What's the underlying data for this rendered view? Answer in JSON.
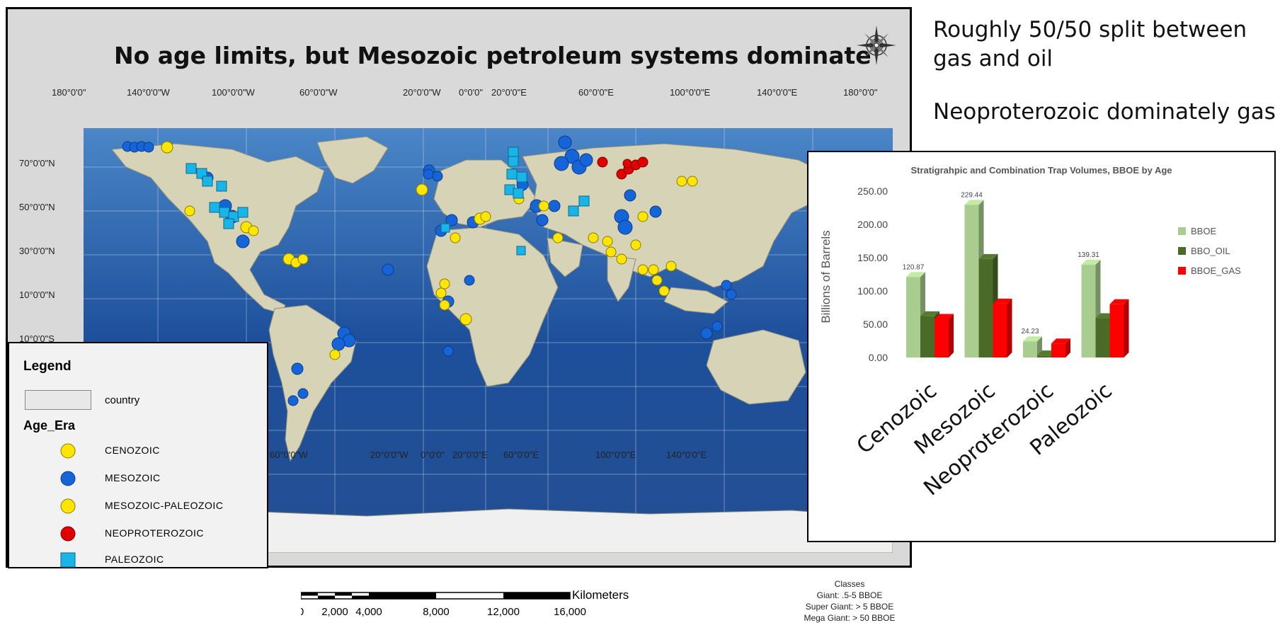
{
  "map": {
    "title": "No age limits, but Mesozoic petroleum systems dominate",
    "top_labels": [
      "180°0'0\"",
      "140°0'0\"W",
      "100°0'0\"W",
      "60°0'0\"W",
      "20°0'0\"W",
      "0°0'0\"",
      "20°0'0\"E",
      "60°0'0\"E",
      "100°0'0\"E",
      "140°0'0\"E",
      "180°0'0\""
    ],
    "bottom_labels": [
      "W",
      "60°0'0\"W",
      "20°0'0\"W",
      "0°0'0\"",
      "20°0'0\"E",
      "60°0'0\"E",
      "100°0'0\"E",
      "140°0'0\"E"
    ],
    "lat_labels": [
      "70°0'0\"N",
      "50°0'0\"N",
      "30°0'0\"N",
      "10°0'0\"N",
      "10°0'0\"S"
    ],
    "colors": {
      "ocean": "#1c4d96",
      "land": "#d7d3b6",
      "cenozoic": "#ffe600",
      "mesozoic": "#1565d8",
      "neoproterozoic": "#e00000",
      "paleozoic": "#19b4e8"
    }
  },
  "legend": {
    "title": "Legend",
    "country_label": "country",
    "era_title": "Age_Era",
    "items": [
      {
        "label": "CENOZOIC",
        "symbol": "yellow-circle"
      },
      {
        "label": "MESOZOIC",
        "symbol": "blue-circle"
      },
      {
        "label": "MESOZOIC-PALEOZOIC",
        "symbol": "yellow-circle"
      },
      {
        "label": "NEOPROTEROZOIC",
        "symbol": "red-circle"
      },
      {
        "label": "PALEOZOIC",
        "symbol": "cyan-square"
      }
    ]
  },
  "notes": {
    "line1a": "Roughly 50/50 split between",
    "line1b": "gas and oil",
    "line2": "Neoproterozoic dominately gas"
  },
  "scale_bar": {
    "unit": "Kilometers",
    "ticks": [
      "0",
      "2,000",
      "4,000",
      "8,000",
      "12,000",
      "16,000"
    ]
  },
  "classes": {
    "title": "Classes",
    "lines": [
      "Giant: .5-5 BBOE",
      "Super Giant: > 5 BBOE",
      "Mega Giant: > 50 BBOE"
    ]
  },
  "chart_data": {
    "type": "bar",
    "title": "Stratigrahpic and Combination Trap Volumes, BBOE by Age",
    "ylabel": "Billions of Barrels",
    "xlabel": "",
    "ylim": [
      0,
      250
    ],
    "yticks": [
      "0.00",
      "50.00",
      "100.00",
      "150.00",
      "200.00",
      "250.00"
    ],
    "categories": [
      "Cenozoic",
      "Mesozoic",
      "Neoproterozoic",
      "Paleozoic"
    ],
    "series": [
      {
        "name": "BBOE",
        "values": [
          120.87,
          229.44,
          24.23,
          139.31
        ],
        "color": "#a9cd8f"
      },
      {
        "name": "BBO_OIL",
        "values": [
          62,
          148,
          3,
          59
        ],
        "color": "#4a6b28"
      },
      {
        "name": "BBOE_GAS",
        "values": [
          58,
          81,
          21,
          80
        ],
        "color": "#ff0000"
      }
    ],
    "data_labels": [
      "120.87",
      "229.44",
      "24.23",
      "139.31"
    ],
    "legend_position": "right"
  }
}
